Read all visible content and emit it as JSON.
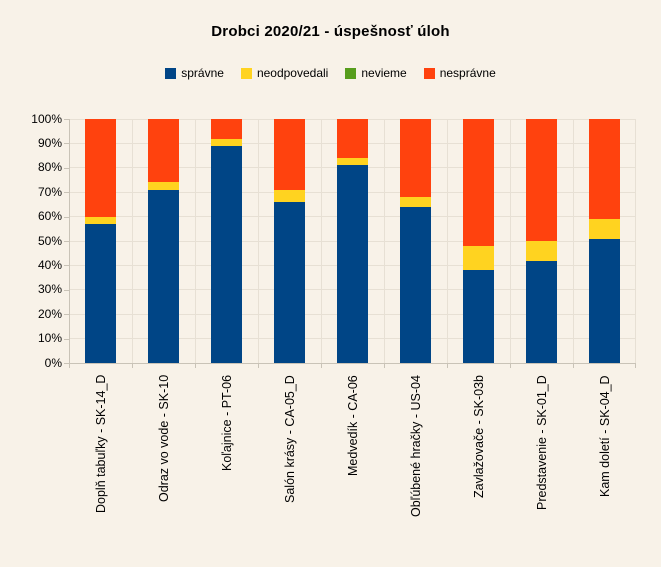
{
  "title": "Drobci 2020/21 - úspešnosť úloh",
  "colors": {
    "background": "#F8F2E8",
    "gridline": "#E7E0D4",
    "axis": "#C9C3B7",
    "text": "#000000"
  },
  "chart_data": {
    "type": "bar",
    "subtype": "stacked-percentage-column",
    "title": "Drobci 2020/21 - úspešnosť úloh",
    "xlabel": "",
    "ylabel": "",
    "ylim": [
      0,
      100
    ],
    "grid": true,
    "legend_position": "top",
    "y_ticks": [
      "0%",
      "10%",
      "20%",
      "30%",
      "40%",
      "50%",
      "60%",
      "70%",
      "80%",
      "90%",
      "100%"
    ],
    "categories": [
      "Doplň tabuľky - SK-14_D",
      "Odraz vo vode - SK-10",
      "Koľajnice - PT-06",
      "Salón krásy - CA-05_D",
      "Medvedík - CA-06",
      "Obľúbené hračky - US-04",
      "Zavlažovače - SK-03b",
      "Predstavenie - SK-01_D",
      "Kam doletí - SK-04_D"
    ],
    "series": [
      {
        "name": "správne",
        "key": "spravne",
        "color": "#004586",
        "values": [
          57,
          71,
          89,
          66,
          81,
          64,
          38,
          42,
          51
        ]
      },
      {
        "name": "neodpovedali",
        "key": "neodpovedali",
        "color": "#FFD320",
        "values": [
          3,
          3,
          3,
          5,
          3,
          4,
          10,
          8,
          8
        ]
      },
      {
        "name": "nevieme",
        "key": "nevieme",
        "color": "#579D1C",
        "values": [
          0,
          0,
          0,
          0,
          0,
          0,
          0,
          0,
          0
        ]
      },
      {
        "name": "nesprávne",
        "key": "nespravne",
        "color": "#FF420E",
        "values": [
          40,
          26,
          8,
          29,
          16,
          32,
          52,
          50,
          41
        ]
      }
    ]
  }
}
